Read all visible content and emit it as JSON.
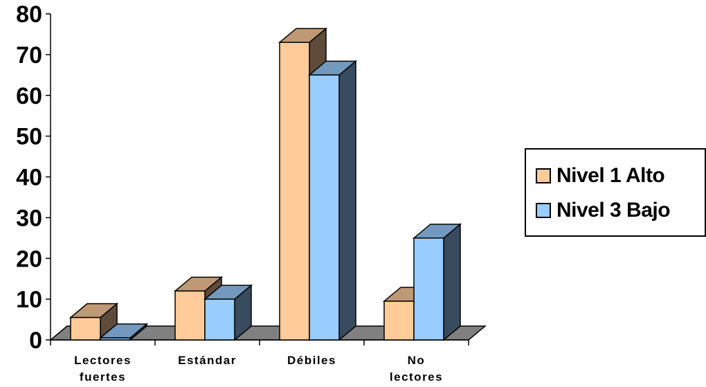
{
  "chart_data": {
    "type": "bar",
    "style": "3d-clustered-column",
    "categories": [
      [
        "Lectores",
        "fuertes"
      ],
      [
        "Estándar"
      ],
      [
        "Débiles"
      ],
      [
        "No",
        "lectores"
      ]
    ],
    "series": [
      {
        "name": "Nivel 1 Alto",
        "values": [
          5.5,
          12,
          73,
          9.5
        ],
        "color": "#FFCC99",
        "side_color": "#5F4B39",
        "top_color": "#BF9973"
      },
      {
        "name": "Nivel 3 Bajo",
        "values": [
          0.5,
          10,
          65,
          25
        ],
        "color": "#99CCFF",
        "side_color": "#394C5F",
        "top_color": "#7399BF"
      }
    ],
    "ylim": [
      0,
      80
    ],
    "yticks": [
      0,
      10,
      20,
      30,
      40,
      50,
      60,
      70,
      80
    ],
    "floor_color": "#808080",
    "legend_position": "right",
    "grid": false,
    "title": "",
    "xlabel": "",
    "ylabel": ""
  }
}
